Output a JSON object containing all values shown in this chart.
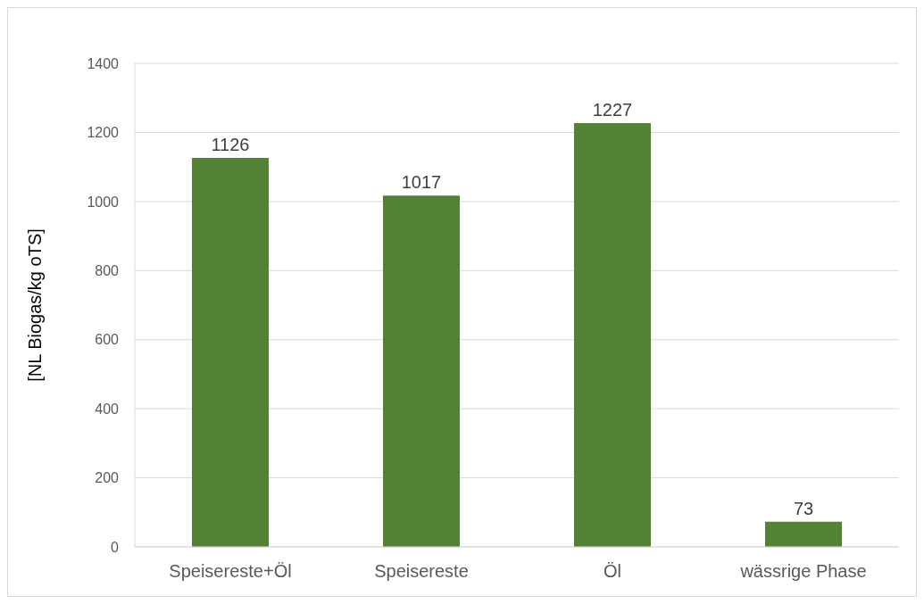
{
  "chart_data": {
    "type": "bar",
    "ylabel": "[NL Biogas/kg oTS]",
    "categories": [
      "Speisereste+Öl",
      "Speisereste",
      "Öl",
      "wässrige Phase"
    ],
    "values": [
      1126,
      1017,
      1227,
      73
    ],
    "color": "#548235",
    "ylim": [
      0,
      1400
    ],
    "yticks": [
      0,
      200,
      400,
      600,
      800,
      1000,
      1200,
      1400
    ],
    "grid": "y",
    "data_labels": true
  }
}
